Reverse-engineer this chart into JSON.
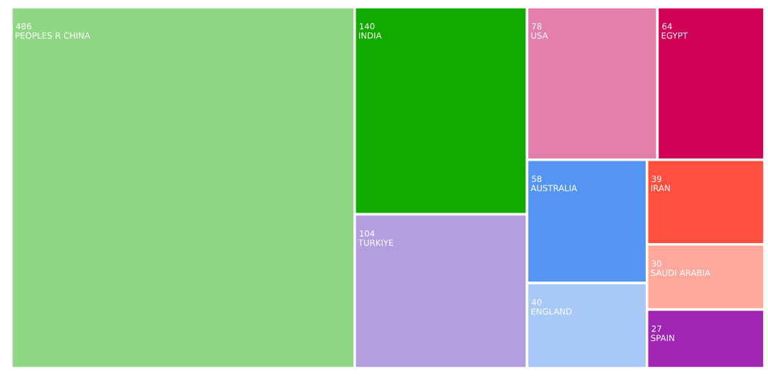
{
  "chart_data": {
    "type": "other",
    "categories": [
      "PEOPLES R CHINA",
      "INDIA",
      "TURKIYE",
      "USA",
      "EGYPT",
      "AUSTRALIA",
      "ENGLAND",
      "IRAN",
      "SAUDI ARABIA",
      "SPAIN"
    ],
    "values": [
      486,
      140,
      104,
      78,
      64,
      58,
      40,
      39,
      30,
      27
    ],
    "colors": [
      "#8fd685",
      "#13aa00",
      "#b39fe0",
      "#e47fad",
      "#cf0056",
      "#5596f5",
      "#a8c8f8",
      "#fe4f3f",
      "#fea89d",
      "#9f26b3"
    ],
    "data_labels": true
  }
}
